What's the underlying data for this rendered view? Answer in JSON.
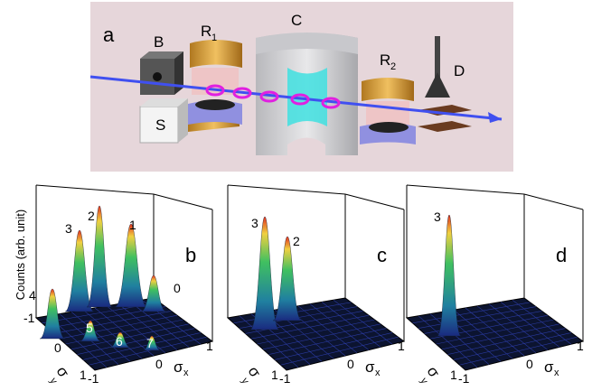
{
  "panel_a": {
    "label": "a",
    "parts": [
      {
        "text": "B"
      },
      {
        "text": "R",
        "sub": "1"
      },
      {
        "text": "C"
      },
      {
        "text": "R",
        "sub": "2"
      },
      {
        "text": "D"
      },
      {
        "text": "S"
      }
    ]
  },
  "plots": [
    {
      "label": "b",
      "z_label": "Counts (arb. unit)",
      "peaks": [
        "3",
        "2",
        "1",
        "0",
        "4",
        "5",
        "6",
        "7"
      ],
      "y_ticks": [
        "-1",
        "0",
        "1"
      ],
      "x_ticks": [
        "-1",
        "0",
        "1"
      ],
      "x_label": {
        "text": "σ",
        "sub": "x"
      },
      "y_label": {
        "text": "σ",
        "sub": "y"
      }
    },
    {
      "label": "c",
      "peaks": [
        "3",
        "2"
      ],
      "y_ticks": [
        "1"
      ],
      "x_ticks": [
        "-1",
        "0",
        "1"
      ],
      "x_label": {
        "text": "σ",
        "sub": "x"
      },
      "y_label": {
        "text": "σ",
        "sub": "y"
      }
    },
    {
      "label": "d",
      "peaks": [
        "3"
      ],
      "y_ticks": [
        "1"
      ],
      "x_ticks": [
        "-1",
        "0",
        "1"
      ],
      "x_label": {
        "text": "σ",
        "sub": "x"
      },
      "y_label": {
        "text": "σ",
        "sub": "y"
      }
    }
  ]
}
